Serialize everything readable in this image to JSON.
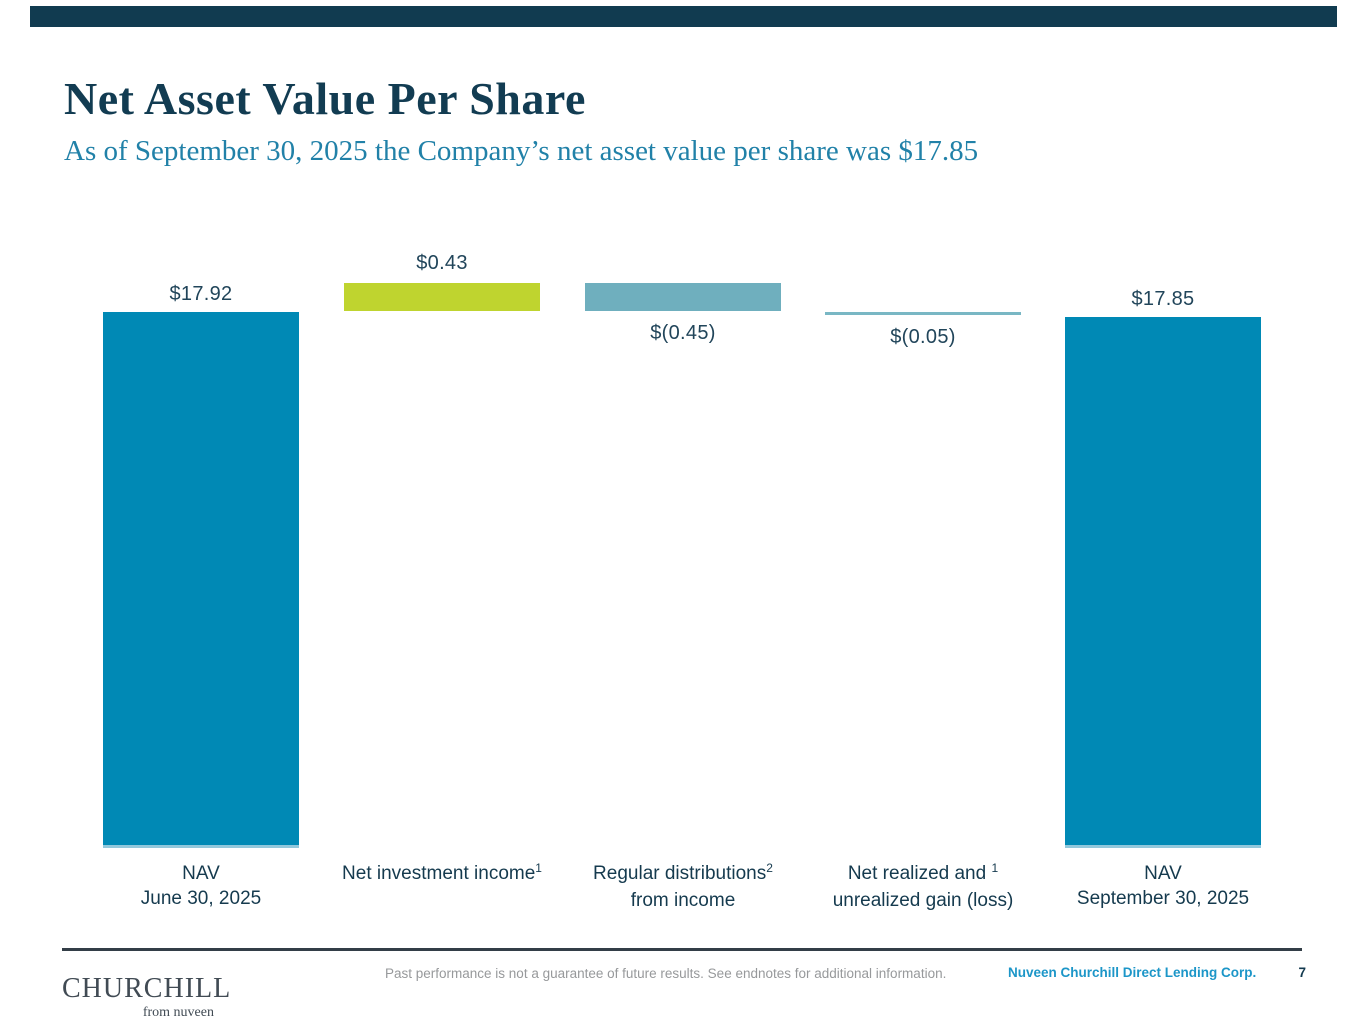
{
  "slide": {
    "title": "Net Asset Value Per Share",
    "subtitle": "As of September 30, 2025 the Company’s net asset value per share was $17.85"
  },
  "chart_data": {
    "type": "bar",
    "subtype": "waterfall",
    "title": "Net Asset Value Per Share",
    "categories": [
      "NAV June 30, 2025",
      "Net investment income",
      "Regular distributions from income",
      "Net realized and unrealized gain (loss)",
      "NAV September 30, 2025"
    ],
    "values": [
      17.92,
      0.43,
      -0.45,
      -0.05,
      17.85
    ],
    "data_labels": [
      "$17.92",
      "$0.43",
      "$(0.45)",
      "$(0.05)",
      "$17.85"
    ],
    "footnote_superscripts": [
      "",
      "1",
      "2",
      "1",
      ""
    ],
    "bar_colors": [
      "#0089B5",
      "#BFD42F",
      "#6FAFBE",
      "#79B7C4",
      "#0089B5"
    ],
    "accent_color": "#113B50",
    "ylim": [
      0,
      18.5
    ],
    "grid": false,
    "legend": false
  },
  "columns": [
    {
      "value_label": "$17.92",
      "line1": "NAV",
      "sup": "",
      "line2": "June 30, 2025"
    },
    {
      "value_label": "$0.43",
      "line1": "Net investment income",
      "sup": "1",
      "line2": ""
    },
    {
      "value_label": "$(0.45)",
      "line1": "Regular distributions",
      "sup": "2",
      "line2": "from income"
    },
    {
      "value_label": "$(0.05)",
      "line1": "Net realized and ",
      "sup": "1",
      "line2": "unrealized gain (loss)"
    },
    {
      "value_label": "$17.85",
      "line1": "NAV",
      "sup": "",
      "line2": "September 30, 2025"
    }
  ],
  "footer": {
    "disclaimer": "Past performance is not a guarantee of future results. See endnotes for additional information.",
    "company": "Nuveen Churchill Direct Lending Corp.",
    "page_number": "7",
    "logo_primary": "CHURCHILL",
    "logo_secondary": "from nuveen"
  }
}
